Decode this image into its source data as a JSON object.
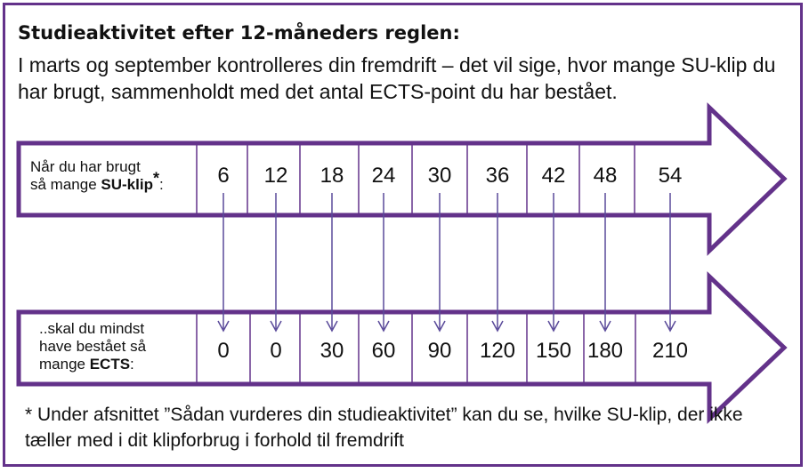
{
  "title": "Studieaktivitet efter 12-måneders reglen:",
  "intro": "I marts og september kontrolleres din fremdrift – det vil sige, hvor mange SU-klip du har brugt, sammenholdt med det antal ECTS-point du har bestået.",
  "row1": {
    "label_line1": "Når du har brugt",
    "label_line2_prefix": "så mange ",
    "label_line2_bold": "SU-klip",
    "label_line2_mark": "*",
    "label_line2_suffix": ":",
    "values": [
      "6",
      "12",
      "18",
      "24",
      "30",
      "36",
      "42",
      "48",
      "54"
    ]
  },
  "row2": {
    "label_line1": "..skal du mindst",
    "label_line2": "have bestået så",
    "label_line3_prefix": "mange ",
    "label_line3_bold": "ECTS",
    "label_line3_suffix": ":",
    "values": [
      "0",
      "0",
      "30",
      "60",
      "90",
      "120",
      "150",
      "180",
      "210"
    ]
  },
  "footnote": "* Under afsnittet ”Sådan vurderes din studieaktivitet” kan du se, hvilke SU-klip, der ikke tæller med i dit klipforbrug i forhold til fremdrift",
  "colors": {
    "accent": "#63328a",
    "connector": "#5a4a9a"
  }
}
